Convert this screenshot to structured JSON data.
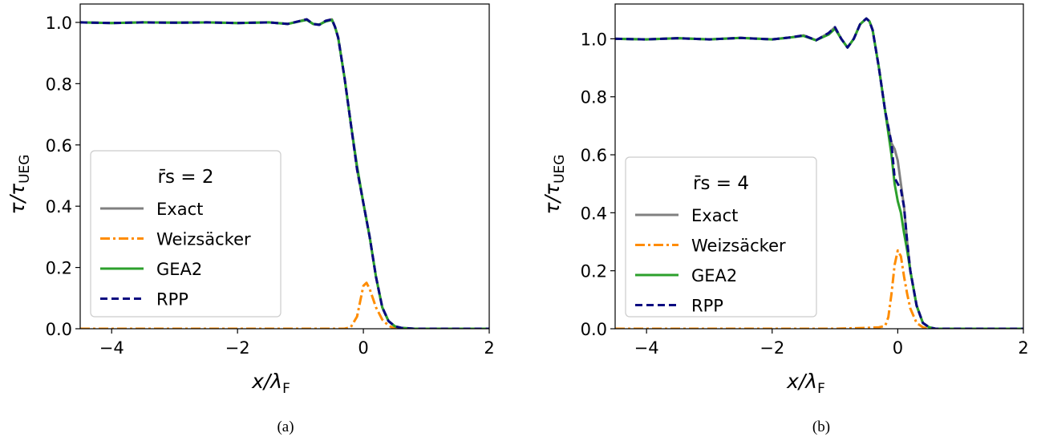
{
  "chart_data": [
    {
      "type": "line",
      "panel_label": "(a)",
      "xlabel": "x/λF",
      "ylabel": "τ/τUEG",
      "xlim": [
        -4.5,
        2
      ],
      "ylim": [
        0,
        1.06
      ],
      "xticks": [
        "−4",
        "−2",
        "0",
        "2"
      ],
      "xtick_values": [
        -4,
        -2,
        0,
        2
      ],
      "yticks": [
        "0.0",
        "0.2",
        "0.4",
        "0.6",
        "0.8",
        "1.0"
      ],
      "ytick_values": [
        0,
        0.2,
        0.4,
        0.6,
        0.8,
        1.0
      ],
      "legend": {
        "title": "r̄s = 2",
        "placement": "center-left"
      },
      "series": [
        {
          "name": "Exact",
          "color": "#808080",
          "style": "solid",
          "x": [
            -4.5,
            -4.0,
            -3.5,
            -3.0,
            -2.5,
            -2.0,
            -1.5,
            -1.2,
            -1.0,
            -0.9,
            -0.8,
            -0.7,
            -0.6,
            -0.5,
            -0.45,
            -0.4,
            -0.3,
            -0.2,
            -0.1,
            0.0,
            0.1,
            0.2,
            0.3,
            0.4,
            0.5,
            0.6,
            0.8,
            1.0,
            1.5,
            2.0
          ],
          "y": [
            1.0,
            0.998,
            1.0,
            0.999,
            1.0,
            0.998,
            1.0,
            0.995,
            1.005,
            1.01,
            0.995,
            0.992,
            1.005,
            1.01,
            0.985,
            0.95,
            0.82,
            0.67,
            0.52,
            0.41,
            0.3,
            0.17,
            0.07,
            0.025,
            0.008,
            0.003,
            0.0,
            0.0,
            0.0,
            0.0
          ]
        },
        {
          "name": "Weizsäcker",
          "color": "#ff8c00",
          "style": "dashdot",
          "x": [
            -4.5,
            -1.0,
            -0.5,
            -0.3,
            -0.2,
            -0.1,
            -0.05,
            0.0,
            0.05,
            0.1,
            0.15,
            0.2,
            0.3,
            0.4,
            0.5,
            0.6,
            2.0
          ],
          "y": [
            0.0,
            0.0,
            0.0,
            0.0,
            0.005,
            0.04,
            0.09,
            0.14,
            0.15,
            0.13,
            0.1,
            0.07,
            0.03,
            0.01,
            0.0,
            0.0,
            0.0
          ]
        },
        {
          "name": "GEA2",
          "color": "#2ca02c",
          "style": "solid",
          "x": [
            -4.5,
            -4.0,
            -3.5,
            -3.0,
            -2.5,
            -2.0,
            -1.5,
            -1.2,
            -1.0,
            -0.9,
            -0.8,
            -0.7,
            -0.6,
            -0.5,
            -0.45,
            -0.4,
            -0.3,
            -0.2,
            -0.1,
            0.0,
            0.1,
            0.2,
            0.3,
            0.4,
            0.5,
            0.6,
            0.8,
            1.0,
            1.5,
            2.0
          ],
          "y": [
            1.0,
            0.998,
            1.0,
            0.999,
            1.0,
            0.998,
            1.0,
            0.995,
            1.004,
            1.008,
            0.995,
            0.993,
            1.003,
            1.008,
            0.985,
            0.95,
            0.82,
            0.67,
            0.53,
            0.41,
            0.3,
            0.17,
            0.07,
            0.025,
            0.008,
            0.003,
            0.0,
            0.0,
            0.0,
            0.0
          ]
        },
        {
          "name": "RPP",
          "color": "#0a0a80",
          "style": "dashed",
          "x": [
            -4.5,
            -4.0,
            -3.5,
            -3.0,
            -2.5,
            -2.0,
            -1.5,
            -1.2,
            -1.0,
            -0.9,
            -0.8,
            -0.7,
            -0.6,
            -0.5,
            -0.45,
            -0.4,
            -0.3,
            -0.2,
            -0.1,
            0.0,
            0.1,
            0.2,
            0.3,
            0.4,
            0.5,
            0.6,
            0.8,
            1.0,
            1.5,
            2.0
          ],
          "y": [
            1.0,
            0.998,
            1.0,
            0.999,
            1.0,
            0.998,
            1.0,
            0.995,
            1.005,
            1.01,
            0.995,
            0.992,
            1.005,
            1.01,
            0.985,
            0.95,
            0.82,
            0.67,
            0.52,
            0.41,
            0.3,
            0.17,
            0.07,
            0.025,
            0.008,
            0.003,
            0.0,
            0.0,
            0.0,
            0.0
          ]
        }
      ]
    },
    {
      "type": "line",
      "panel_label": "(b)",
      "xlabel": "x/λF",
      "ylabel": "τ/τUEG",
      "xlim": [
        -4.5,
        2
      ],
      "ylim": [
        0,
        1.12
      ],
      "xticks": [
        "−4",
        "−2",
        "0",
        "2"
      ],
      "xtick_values": [
        -4,
        -2,
        0,
        2
      ],
      "yticks": [
        "0.0",
        "0.2",
        "0.4",
        "0.6",
        "0.8",
        "1.0"
      ],
      "ytick_values": [
        0,
        0.2,
        0.4,
        0.6,
        0.8,
        1.0
      ],
      "legend": {
        "title": "r̄s = 4",
        "placement": "center-left"
      },
      "series": [
        {
          "name": "Exact",
          "color": "#808080",
          "style": "solid",
          "x": [
            -4.5,
            -4.0,
            -3.5,
            -3.0,
            -2.5,
            -2.0,
            -1.7,
            -1.5,
            -1.3,
            -1.1,
            -1.0,
            -0.9,
            -0.8,
            -0.7,
            -0.6,
            -0.5,
            -0.45,
            -0.4,
            -0.3,
            -0.2,
            -0.1,
            -0.05,
            0.0,
            0.05,
            0.1,
            0.15,
            0.2,
            0.3,
            0.4,
            0.5,
            0.6,
            1.0,
            2.0
          ],
          "y": [
            1.0,
            0.998,
            1.002,
            0.998,
            1.003,
            0.998,
            1.005,
            1.012,
            0.995,
            1.02,
            1.04,
            1.0,
            0.97,
            1.0,
            1.05,
            1.07,
            1.06,
            1.03,
            0.9,
            0.75,
            0.64,
            0.62,
            0.58,
            0.5,
            0.42,
            0.3,
            0.2,
            0.08,
            0.02,
            0.005,
            0.0,
            0.0,
            0.0
          ]
        },
        {
          "name": "Weizsäcker",
          "color": "#ff8c00",
          "style": "dashdot",
          "x": [
            -4.5,
            -1.0,
            -0.5,
            -0.3,
            -0.2,
            -0.15,
            -0.1,
            -0.05,
            0.0,
            0.05,
            0.1,
            0.15,
            0.2,
            0.3,
            0.4,
            0.5,
            2.0
          ],
          "y": [
            0.0,
            0.0,
            0.003,
            0.005,
            0.01,
            0.04,
            0.12,
            0.22,
            0.27,
            0.25,
            0.18,
            0.12,
            0.07,
            0.02,
            0.005,
            0.0,
            0.0
          ]
        },
        {
          "name": "GEA2",
          "color": "#2ca02c",
          "style": "solid",
          "x": [
            -4.5,
            -4.0,
            -3.5,
            -3.0,
            -2.5,
            -2.0,
            -1.7,
            -1.5,
            -1.3,
            -1.1,
            -1.0,
            -0.9,
            -0.8,
            -0.7,
            -0.6,
            -0.5,
            -0.45,
            -0.4,
            -0.3,
            -0.2,
            -0.1,
            -0.05,
            0.0,
            0.05,
            0.1,
            0.15,
            0.2,
            0.3,
            0.4,
            0.5,
            0.6,
            1.0,
            2.0
          ],
          "y": [
            1.0,
            0.998,
            1.002,
            0.998,
            1.003,
            0.998,
            1.005,
            1.01,
            0.995,
            1.015,
            1.035,
            1.0,
            0.97,
            1.0,
            1.05,
            1.07,
            1.06,
            1.03,
            0.9,
            0.75,
            0.6,
            0.5,
            0.44,
            0.4,
            0.33,
            0.27,
            0.2,
            0.08,
            0.02,
            0.005,
            0.0,
            0.0,
            0.0
          ]
        },
        {
          "name": "RPP",
          "color": "#0a0a80",
          "style": "dashed",
          "x": [
            -4.5,
            -4.0,
            -3.5,
            -3.0,
            -2.5,
            -2.0,
            -1.7,
            -1.5,
            -1.3,
            -1.1,
            -1.0,
            -0.9,
            -0.8,
            -0.7,
            -0.6,
            -0.5,
            -0.45,
            -0.4,
            -0.3,
            -0.2,
            -0.1,
            -0.05,
            0.0,
            0.05,
            0.1,
            0.15,
            0.2,
            0.3,
            0.4,
            0.5,
            0.6,
            1.0,
            2.0
          ],
          "y": [
            1.0,
            0.998,
            1.002,
            0.998,
            1.003,
            0.998,
            1.005,
            1.012,
            0.995,
            1.02,
            1.04,
            1.0,
            0.97,
            1.0,
            1.05,
            1.07,
            1.06,
            1.03,
            0.9,
            0.75,
            0.64,
            0.52,
            0.5,
            0.48,
            0.42,
            0.3,
            0.2,
            0.08,
            0.02,
            0.005,
            0.0,
            0.0,
            0.0
          ]
        }
      ]
    }
  ]
}
